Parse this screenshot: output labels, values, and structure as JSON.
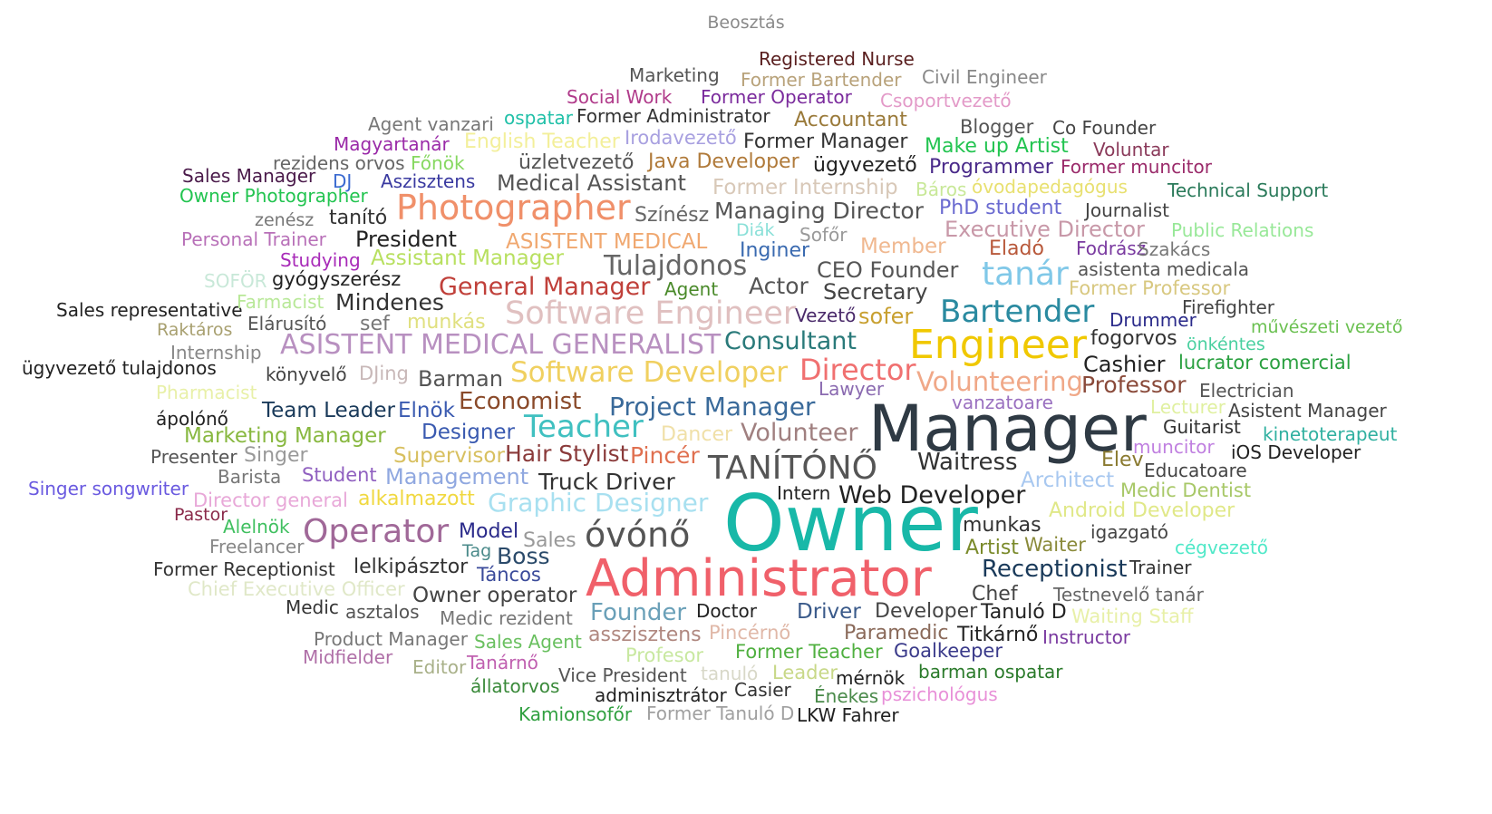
{
  "visual": {
    "title": "Beosztás",
    "words": [
      {
        "text": "Registered Nurse",
        "color": "#5a1f1f"
      },
      {
        "text": "Marketing",
        "color": "#555555"
      },
      {
        "text": "Former Bartender",
        "color": "#b8a27a"
      },
      {
        "text": "Civil Engineer",
        "color": "#888888"
      },
      {
        "text": "Social Work",
        "color": "#b03a8a"
      },
      {
        "text": "Former Operator",
        "color": "#7a2a9c"
      },
      {
        "text": "Csoportvezető",
        "color": "#e39ac8"
      },
      {
        "text": "Agent vanzari",
        "color": "#777777"
      },
      {
        "text": "ospatar",
        "color": "#20c0a8"
      },
      {
        "text": "Former Administrator",
        "color": "#333333"
      },
      {
        "text": "Accountant",
        "color": "#9a7a3a"
      },
      {
        "text": "Blogger",
        "color": "#555555"
      },
      {
        "text": "Co Founder",
        "color": "#444444"
      },
      {
        "text": "Magyartanár",
        "color": "#9a2aa8"
      },
      {
        "text": "English Teacher",
        "color": "#f3ef9a"
      },
      {
        "text": "Irodavezető",
        "color": "#a8a0e0"
      },
      {
        "text": "Former Manager",
        "color": "#333333"
      },
      {
        "text": "Make up Artist",
        "color": "#22c450"
      },
      {
        "text": "Voluntar",
        "color": "#8a3a5a"
      },
      {
        "text": "rezidens orvos",
        "color": "#666666"
      },
      {
        "text": "Főnök",
        "color": "#86d860"
      },
      {
        "text": "üzletvezető",
        "color": "#555555"
      },
      {
        "text": "Java Developer",
        "color": "#b07a3a"
      },
      {
        "text": "ügyvezető",
        "color": "#222222"
      },
      {
        "text": "Programmer",
        "color": "#4a2a8a"
      },
      {
        "text": "Former muncitor",
        "color": "#9a2a6a"
      },
      {
        "text": "Sales Manager",
        "color": "#4a1a4a"
      },
      {
        "text": "DJ",
        "color": "#3a6ad0"
      },
      {
        "text": "Aszisztens",
        "color": "#3a3aa0"
      },
      {
        "text": "Medical Assistant",
        "color": "#555555"
      },
      {
        "text": "Former Internship",
        "color": "#d8c8b8"
      },
      {
        "text": "Báros",
        "color": "#c8e898"
      },
      {
        "text": "óvodapedagógus",
        "color": "#e8e070"
      },
      {
        "text": "Technical Support",
        "color": "#2a7a5a"
      },
      {
        "text": "Owner Photographer",
        "color": "#22c450"
      },
      {
        "text": "Photographer",
        "color": "#f0906a"
      },
      {
        "text": "Színész",
        "color": "#666666"
      },
      {
        "text": "Managing Director",
        "color": "#555555"
      },
      {
        "text": "PhD student",
        "color": "#6a6ad0"
      },
      {
        "text": "Journalist",
        "color": "#444444"
      },
      {
        "text": "zenész",
        "color": "#777777"
      },
      {
        "text": "tanító",
        "color": "#333333"
      },
      {
        "text": "Diák",
        "color": "#8ae0d8"
      },
      {
        "text": "Sofőr",
        "color": "#999999"
      },
      {
        "text": "Executive Director",
        "color": "#c898a8"
      },
      {
        "text": "Public Relations",
        "color": "#98e898"
      },
      {
        "text": "Personal Trainer",
        "color": "#b870b8"
      },
      {
        "text": "President",
        "color": "#222222"
      },
      {
        "text": "ASISTENT MEDICAL",
        "color": "#f0a870"
      },
      {
        "text": "Inginer",
        "color": "#3a6ab0"
      },
      {
        "text": "Member",
        "color": "#f0b890"
      },
      {
        "text": "Eladó",
        "color": "#b8583a"
      },
      {
        "text": "Fodrász",
        "color": "#7a3aa0"
      },
      {
        "text": "Szakács",
        "color": "#777777"
      },
      {
        "text": "Studying",
        "color": "#a82ab8"
      },
      {
        "text": "Assistant Manager",
        "color": "#b8e060"
      },
      {
        "text": "Tulajdonos",
        "color": "#666666"
      },
      {
        "text": "CEO Founder",
        "color": "#555555"
      },
      {
        "text": "tanár",
        "color": "#80c8e8"
      },
      {
        "text": "asistenta medicala",
        "color": "#555555"
      },
      {
        "text": "SOFÖR",
        "color": "#c8e8d8"
      },
      {
        "text": "gyógyszerész",
        "color": "#222222"
      },
      {
        "text": "General Manager",
        "color": "#c0403a"
      },
      {
        "text": "Agent",
        "color": "#4a8a2a"
      },
      {
        "text": "Actor",
        "color": "#555555"
      },
      {
        "text": "Secretary",
        "color": "#444444"
      },
      {
        "text": "Former Professor",
        "color": "#d8c880"
      },
      {
        "text": "Firefighter",
        "color": "#444444"
      },
      {
        "text": "Sales representative",
        "color": "#222222"
      },
      {
        "text": "Farmacist",
        "color": "#b8e898"
      },
      {
        "text": "Mindenes",
        "color": "#333333"
      },
      {
        "text": "Software Engineer",
        "color": "#e0c0c0"
      },
      {
        "text": "Vezető",
        "color": "#4a2a6a"
      },
      {
        "text": "sofer",
        "color": "#c8a030"
      },
      {
        "text": "Bartender",
        "color": "#2a8aa0"
      },
      {
        "text": "Drummer",
        "color": "#2a2a8a"
      },
      {
        "text": "művészeti vezető",
        "color": "#6ac050"
      },
      {
        "text": "Raktáros",
        "color": "#a8a070"
      },
      {
        "text": "Elárusító",
        "color": "#555555"
      },
      {
        "text": "sef",
        "color": "#777777"
      },
      {
        "text": "munkás",
        "color": "#e0e080"
      },
      {
        "text": "Consultant",
        "color": "#2a7a7a"
      },
      {
        "text": "Engineer",
        "color": "#f0c800"
      },
      {
        "text": "fogorvos",
        "color": "#333333"
      },
      {
        "text": "önkéntes",
        "color": "#4ad0a0"
      },
      {
        "text": "Internship",
        "color": "#888888"
      },
      {
        "text": "ASISTENT MEDICAL GENERALIST",
        "color": "#b890c0"
      },
      {
        "text": "Cashier",
        "color": "#222222"
      },
      {
        "text": "lucrator comercial",
        "color": "#2aa040"
      },
      {
        "text": "ügyvezető tulajdonos",
        "color": "#222222"
      },
      {
        "text": "könyvelő",
        "color": "#444444"
      },
      {
        "text": "DJing",
        "color": "#c8b8b8"
      },
      {
        "text": "Barman",
        "color": "#555555"
      },
      {
        "text": "Software Developer",
        "color": "#f0d060"
      },
      {
        "text": "Director",
        "color": "#f07070"
      },
      {
        "text": "Volunteering",
        "color": "#f0a888"
      },
      {
        "text": "Professor",
        "color": "#8a4a3a"
      },
      {
        "text": "Pharmacist",
        "color": "#e8f0a8"
      },
      {
        "text": "Lawyer",
        "color": "#8a6ab0"
      },
      {
        "text": "Electrician",
        "color": "#555555"
      },
      {
        "text": "Economist",
        "color": "#8a4a2a"
      },
      {
        "text": "Team Leader",
        "color": "#1a3a5a"
      },
      {
        "text": "Elnök",
        "color": "#3a5ab0"
      },
      {
        "text": "Project Manager",
        "color": "#3a6a9a"
      },
      {
        "text": "vanzatoare",
        "color": "#9a70c0"
      },
      {
        "text": "Lecturer",
        "color": "#e0f0a0"
      },
      {
        "text": "Asistent Manager",
        "color": "#444444"
      },
      {
        "text": "ápolónő",
        "color": "#222222"
      },
      {
        "text": "Manager",
        "color": "#2f3a44"
      },
      {
        "text": "Teacher",
        "color": "#40c0c0"
      },
      {
        "text": "Guitarist",
        "color": "#333333"
      },
      {
        "text": "Designer",
        "color": "#3a5ab0"
      },
      {
        "text": "Marketing Manager",
        "color": "#88b840"
      },
      {
        "text": "Dancer",
        "color": "#f0e0a8"
      },
      {
        "text": "Volunteer",
        "color": "#a08080"
      },
      {
        "text": "kinetoterapeut",
        "color": "#30b0a0"
      },
      {
        "text": "Presenter",
        "color": "#555555"
      },
      {
        "text": "Singer",
        "color": "#999999"
      },
      {
        "text": "Supervisor",
        "color": "#d8c060"
      },
      {
        "text": "Hair Stylist",
        "color": "#8a3a3a"
      },
      {
        "text": "Pincér",
        "color": "#e07050"
      },
      {
        "text": "muncitor",
        "color": "#c080e0"
      },
      {
        "text": "iOS Developer",
        "color": "#222222"
      },
      {
        "text": "Barista",
        "color": "#777777"
      },
      {
        "text": "Student",
        "color": "#9060c0"
      },
      {
        "text": "Management",
        "color": "#90a8e0"
      },
      {
        "text": "TANÍTÓNŐ",
        "color": "#555555"
      },
      {
        "text": "Waitress",
        "color": "#333333"
      },
      {
        "text": "Elev",
        "color": "#8a7a30"
      },
      {
        "text": "Educatoare",
        "color": "#444444"
      },
      {
        "text": "Singer songwriter",
        "color": "#6a5ae0"
      },
      {
        "text": "Truck Driver",
        "color": "#333333"
      },
      {
        "text": "Architect",
        "color": "#a8c8f0"
      },
      {
        "text": "Intern",
        "color": "#222222"
      },
      {
        "text": "Medic Dentist",
        "color": "#a8c868"
      },
      {
        "text": "Director general",
        "color": "#e8a8d8"
      },
      {
        "text": "alkalmazott",
        "color": "#f0d840"
      },
      {
        "text": "Graphic Designer",
        "color": "#a8e0f0"
      },
      {
        "text": "Web Developer",
        "color": "#222222"
      },
      {
        "text": "Owner",
        "color": "#18b8a8"
      },
      {
        "text": "Android Developer",
        "color": "#e0e888"
      },
      {
        "text": "Pastor",
        "color": "#8a2a4a"
      },
      {
        "text": "Alelnök",
        "color": "#40c060"
      },
      {
        "text": "Operator",
        "color": "#a06898"
      },
      {
        "text": "Model",
        "color": "#2a2a8a"
      },
      {
        "text": "óvónő",
        "color": "#555555"
      },
      {
        "text": "munkas",
        "color": "#333333"
      },
      {
        "text": "igazgató",
        "color": "#444444"
      },
      {
        "text": "Freelancer",
        "color": "#888888"
      },
      {
        "text": "Sales",
        "color": "#999999"
      },
      {
        "text": "Tag",
        "color": "#4a8a8a"
      },
      {
        "text": "Boss",
        "color": "#2a4a6a"
      },
      {
        "text": "Artist",
        "color": "#7a8a2a"
      },
      {
        "text": "Waiter",
        "color": "#8a8a3a"
      },
      {
        "text": "cégvezető",
        "color": "#50e8c8"
      },
      {
        "text": "Former Receptionist",
        "color": "#333333"
      },
      {
        "text": "lelkipásztor",
        "color": "#333333"
      },
      {
        "text": "Táncos",
        "color": "#3a4a9a"
      },
      {
        "text": "Administrator",
        "color": "#f0606a"
      },
      {
        "text": "Receptionist",
        "color": "#1a3a5a"
      },
      {
        "text": "Trainer",
        "color": "#333333"
      },
      {
        "text": "Chief Executive Officer",
        "color": "#e0e8c8"
      },
      {
        "text": "Owner operator",
        "color": "#444444"
      },
      {
        "text": "Chef",
        "color": "#444444"
      },
      {
        "text": "Testnevelő tanár",
        "color": "#666666"
      },
      {
        "text": "Medic",
        "color": "#333333"
      },
      {
        "text": "asztalos",
        "color": "#555555"
      },
      {
        "text": "Founder",
        "color": "#6aa0b8"
      },
      {
        "text": "Doctor",
        "color": "#222222"
      },
      {
        "text": "Driver",
        "color": "#3a5a8a"
      },
      {
        "text": "Developer",
        "color": "#444444"
      },
      {
        "text": "Tanuló D",
        "color": "#222222"
      },
      {
        "text": "Waiting Staff",
        "color": "#e8f0a8"
      },
      {
        "text": "Medic rezident",
        "color": "#777777"
      },
      {
        "text": "Product Manager",
        "color": "#777777"
      },
      {
        "text": "asszisztens",
        "color": "#b08880"
      },
      {
        "text": "Pincérnő",
        "color": "#e0b8a8"
      },
      {
        "text": "Paramedic",
        "color": "#8a6a5a"
      },
      {
        "text": "Titkárnő",
        "color": "#222222"
      },
      {
        "text": "Instructor",
        "color": "#7a3aa0"
      },
      {
        "text": "Sales Agent",
        "color": "#6ac060"
      },
      {
        "text": "Midfielder",
        "color": "#b070a8"
      },
      {
        "text": "Profesor",
        "color": "#c8e8a0"
      },
      {
        "text": "Former Teacher",
        "color": "#50b040"
      },
      {
        "text": "Goalkeeper",
        "color": "#3a3a8a"
      },
      {
        "text": "Editor",
        "color": "#a8b088"
      },
      {
        "text": "Tanárnő",
        "color": "#c060b0"
      },
      {
        "text": "Vice President",
        "color": "#555555"
      },
      {
        "text": "tanuló",
        "color": "#d8d8c8"
      },
      {
        "text": "Leader",
        "color": "#c8d888"
      },
      {
        "text": "mérnök",
        "color": "#222222"
      },
      {
        "text": "barman ospatar",
        "color": "#2a7a2a"
      },
      {
        "text": "állatorvos",
        "color": "#3a8a3a"
      },
      {
        "text": "adminisztrátor",
        "color": "#222222"
      },
      {
        "text": "Casier",
        "color": "#333333"
      },
      {
        "text": "Énekes",
        "color": "#4a8a4a"
      },
      {
        "text": "pszichológus",
        "color": "#e890d8"
      },
      {
        "text": "Kamionsofőr",
        "color": "#30a040"
      },
      {
        "text": "Former Tanuló D",
        "color": "#a0a0a0"
      },
      {
        "text": "LKW Fahrer",
        "color": "#222222"
      }
    ]
  }
}
